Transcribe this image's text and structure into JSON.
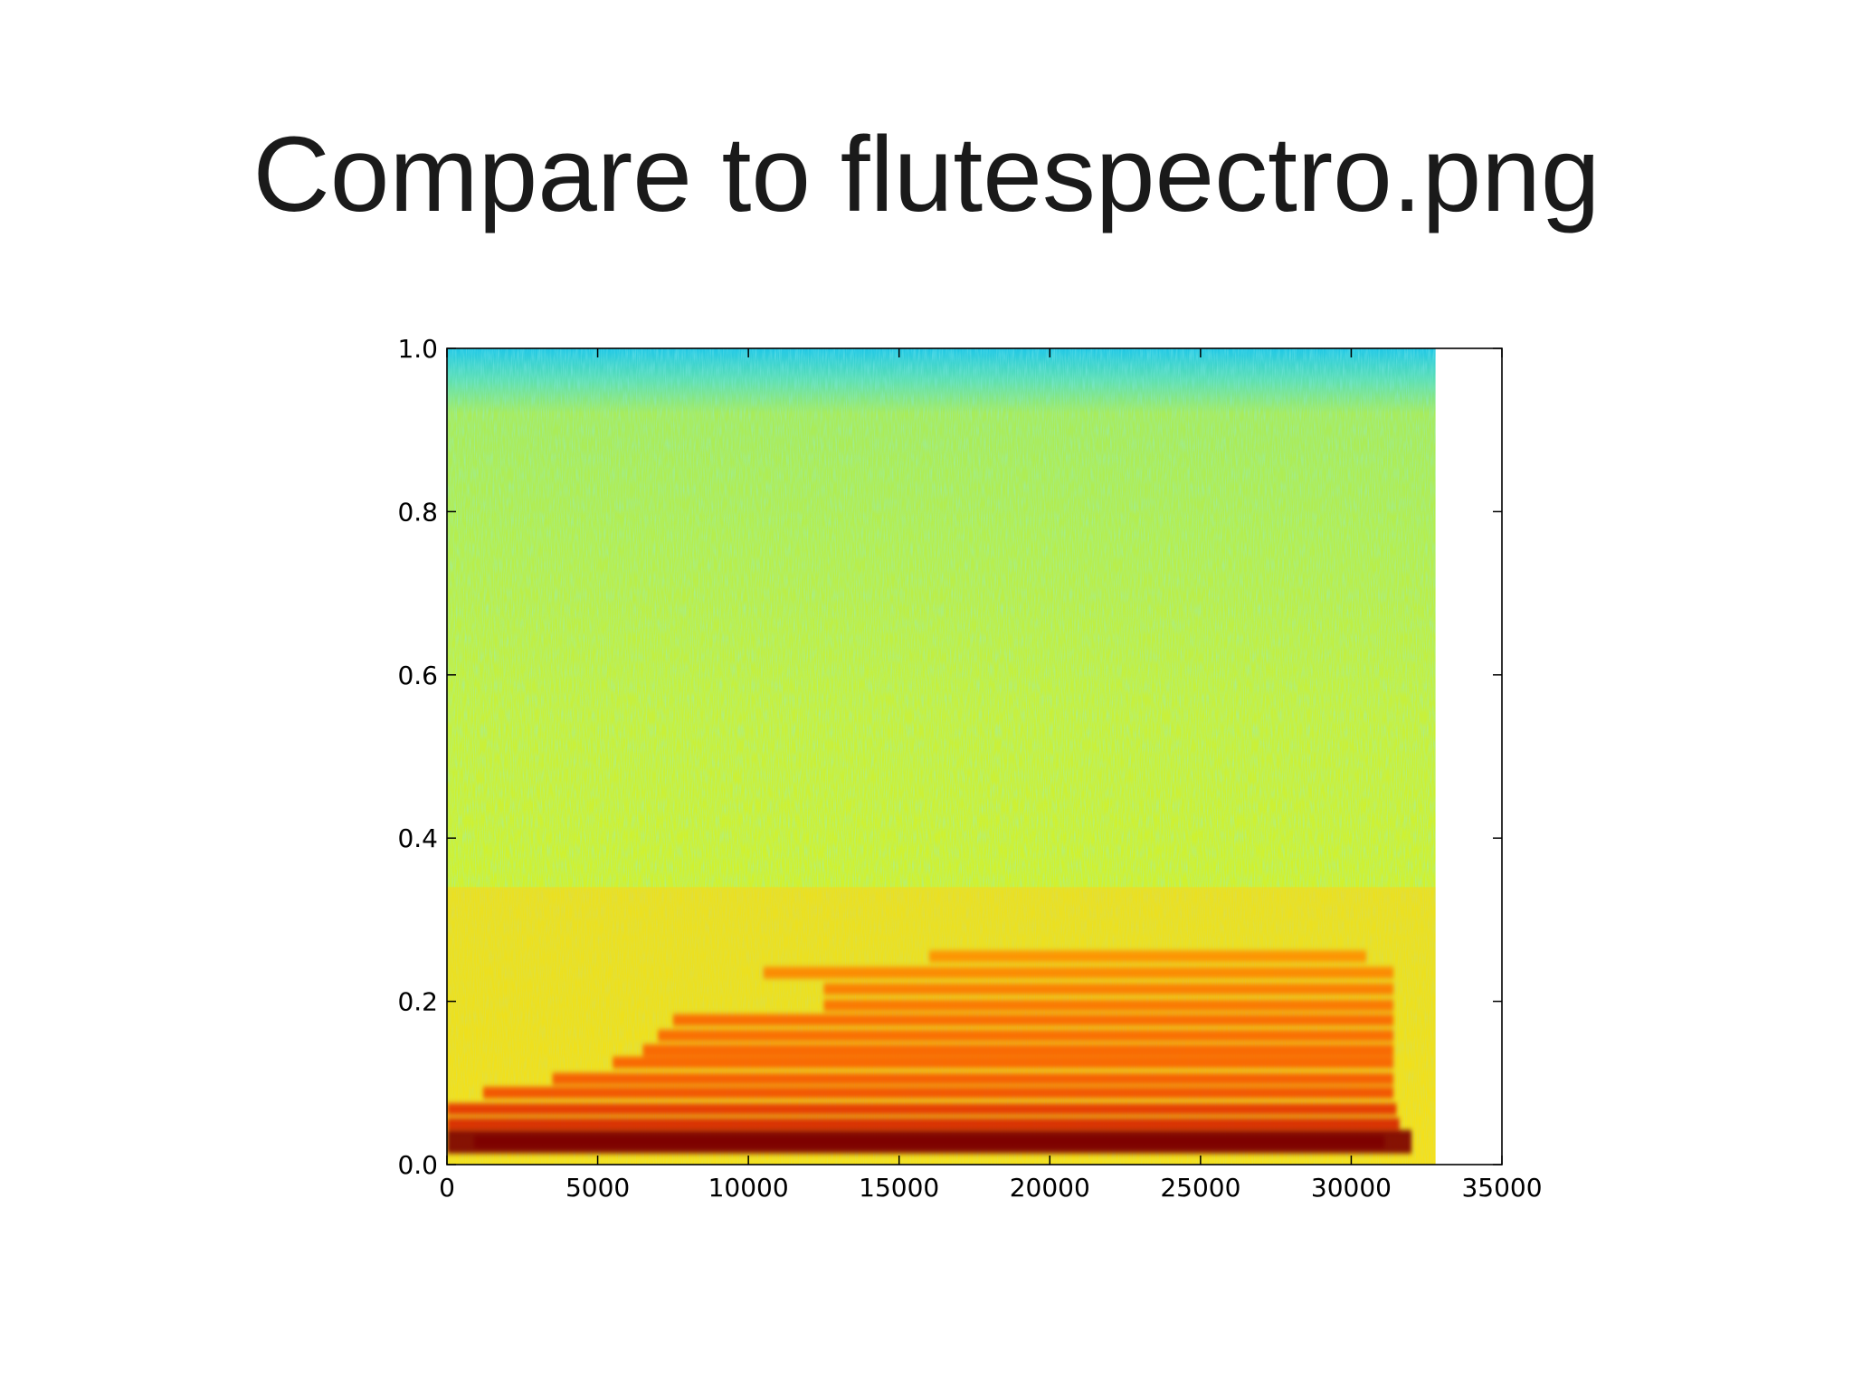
{
  "slide": {
    "title": "Compare to flutespectro.png"
  },
  "colors": {
    "background": "#ffffff",
    "axis": "#000000",
    "colormap": "jet"
  },
  "chart_data": {
    "type": "heatmap",
    "title": "",
    "xlabel": "",
    "ylabel": "",
    "xlim": [
      0,
      35000
    ],
    "ylim": [
      0.0,
      1.0
    ],
    "x_ticks": [
      0,
      5000,
      10000,
      15000,
      20000,
      25000,
      30000,
      35000
    ],
    "x_tick_labels": [
      "0",
      "5000",
      "10000",
      "15000",
      "20000",
      "25000",
      "30000",
      "35000"
    ],
    "y_ticks": [
      0.0,
      0.2,
      0.4,
      0.6,
      0.8,
      1.0
    ],
    "y_tick_labels": [
      "0.0",
      "0.2",
      "0.4",
      "0.6",
      "0.8",
      "1.0"
    ],
    "grid": false,
    "legend": "none",
    "data_extent_x": [
      0,
      32800
    ],
    "harmonic_bands": [
      {
        "y": 0.028,
        "x_start": 0,
        "x_end": 32000,
        "intensity": 1.0
      },
      {
        "y": 0.05,
        "x_start": 0,
        "x_end": 31600,
        "intensity": 0.84
      },
      {
        "y": 0.068,
        "x_start": 0,
        "x_end": 31500,
        "intensity": 0.8
      },
      {
        "y": 0.088,
        "x_start": 1200,
        "x_end": 31400,
        "intensity": 0.74
      },
      {
        "y": 0.105,
        "x_start": 3500,
        "x_end": 31400,
        "intensity": 0.72
      },
      {
        "y": 0.125,
        "x_start": 5500,
        "x_end": 31400,
        "intensity": 0.7
      },
      {
        "y": 0.14,
        "x_start": 6500,
        "x_end": 31400,
        "intensity": 0.7
      },
      {
        "y": 0.158,
        "x_start": 7000,
        "x_end": 31400,
        "intensity": 0.68
      },
      {
        "y": 0.177,
        "x_start": 7500,
        "x_end": 31400,
        "intensity": 0.68
      },
      {
        "y": 0.195,
        "x_start": 12500,
        "x_end": 31400,
        "intensity": 0.65
      },
      {
        "y": 0.215,
        "x_start": 12500,
        "x_end": 31400,
        "intensity": 0.63
      },
      {
        "y": 0.235,
        "x_start": 10500,
        "x_end": 31400,
        "intensity": 0.6
      },
      {
        "y": 0.255,
        "x_start": 16000,
        "x_end": 30500,
        "intensity": 0.57
      }
    ]
  }
}
